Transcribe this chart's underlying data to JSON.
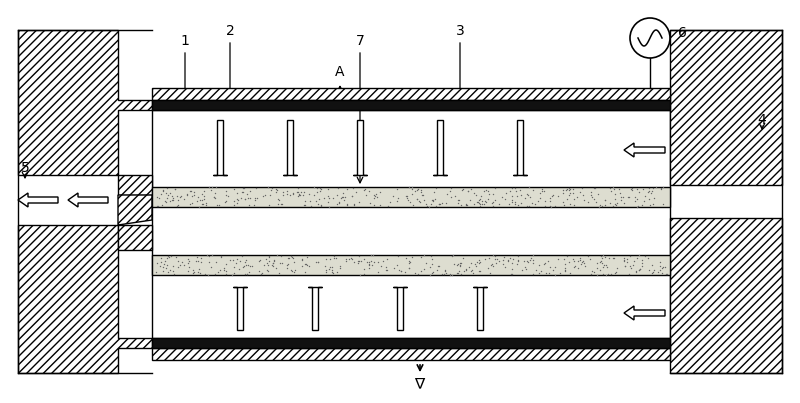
{
  "fig_width": 8.0,
  "fig_height": 4.03,
  "dpi": 100,
  "bg_color": "#ffffff"
}
